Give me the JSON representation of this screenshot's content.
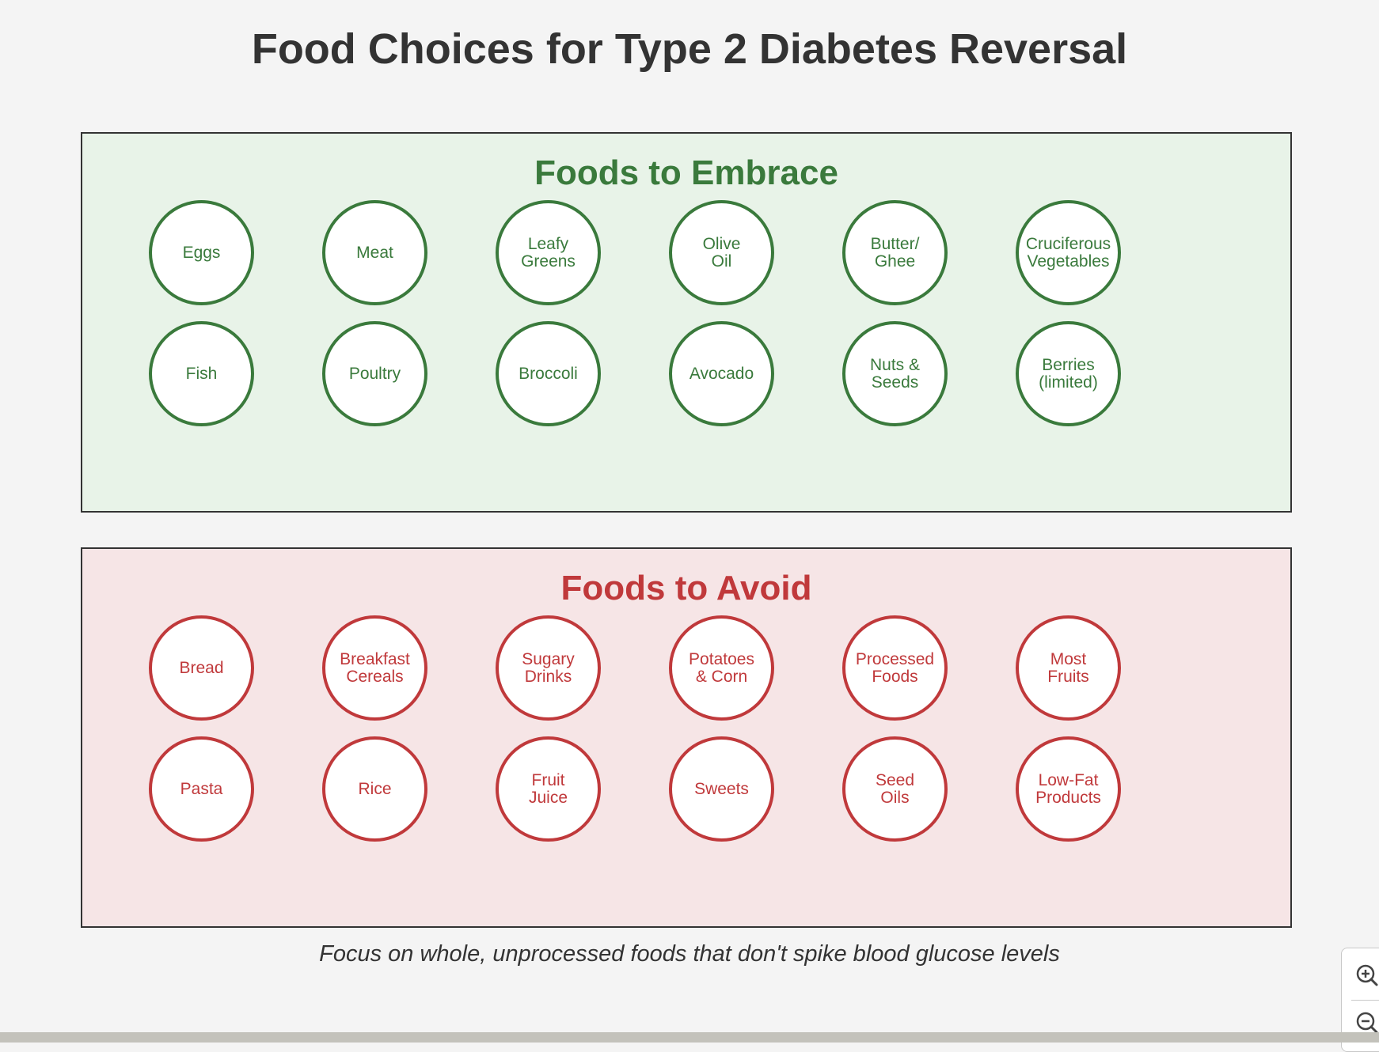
{
  "title": "Food Choices for Type 2 Diabetes Reversal",
  "colors": {
    "embrace_accent": "#3a7a3c",
    "embrace_background": "#e8f3e8",
    "avoid_accent": "#c0393b",
    "avoid_background": "#f6e5e6",
    "page_background": "#f4f4f4",
    "text": "#333333"
  },
  "sections": {
    "embrace": {
      "title": "Foods to Embrace",
      "items": [
        "Eggs",
        "Meat",
        "Leafy\nGreens",
        "Olive\nOil",
        "Butter/\nGhee",
        "Cruciferous\nVegetables",
        "Fish",
        "Poultry",
        "Broccoli",
        "Avocado",
        "Nuts &\nSeeds",
        "Berries\n(limited)"
      ]
    },
    "avoid": {
      "title": "Foods to Avoid",
      "items": [
        "Bread",
        "Breakfast\nCereals",
        "Sugary\nDrinks",
        "Potatoes\n& Corn",
        "Processed\nFoods",
        "Most\nFruits",
        "Pasta",
        "Rice",
        "Fruit\nJuice",
        "Sweets",
        "Seed\nOils",
        "Low-Fat\nProducts"
      ]
    }
  },
  "footer": "Focus on whole, unprocessed foods that don't spike blood glucose levels",
  "zoom_controls": {
    "zoom_in_icon": "zoom-in-icon",
    "zoom_out_icon": "zoom-out-icon"
  }
}
